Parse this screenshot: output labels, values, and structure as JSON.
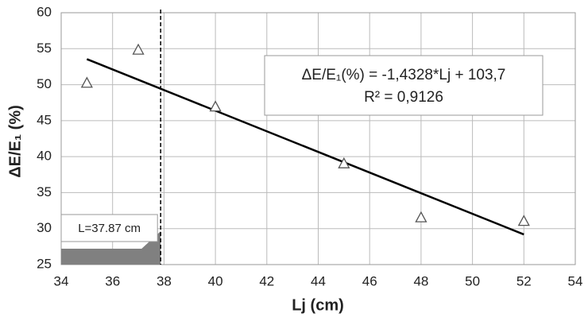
{
  "chart_data": {
    "type": "scatter",
    "x_label": "Lj (cm)",
    "y_label": "ΔE/E₁ (%)",
    "series": [
      {
        "x": [
          35,
          37,
          40,
          45,
          48,
          52
        ],
        "values": [
          50.2,
          54.8,
          46.9,
          39,
          31.5,
          31
        ],
        "color": "#555555",
        "marker": "triangle"
      },
      {
        "type": "line",
        "x": [
          35,
          52
        ],
        "values": [
          53.55,
          29.19
        ],
        "color": "#000000"
      }
    ],
    "equation": "ΔE/E₁(%) = -1,4328*Lj + 103,7",
    "r_squared": "R² = 0,9126",
    "threshold": {
      "x": 37.87,
      "label": "L=37.87 cm"
    },
    "xlim": [
      34,
      54
    ],
    "xticks": [
      34,
      36,
      38,
      40,
      42,
      44,
      46,
      48,
      50,
      52,
      54
    ],
    "ylim": [
      25,
      60
    ],
    "yticks": [
      25,
      30,
      35,
      40,
      45,
      50,
      55,
      60
    ],
    "grid": true
  }
}
